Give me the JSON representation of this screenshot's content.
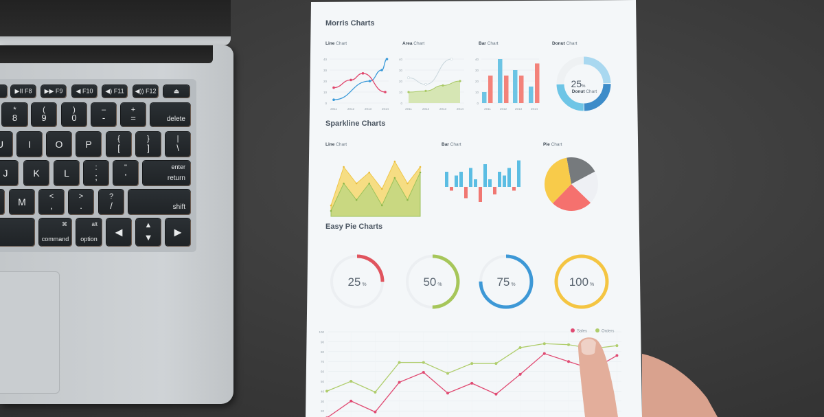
{
  "scene": {
    "background_color": "#3b3b3b",
    "laptop_color": "#cbcfd2",
    "paper_color": "#f4f7f9"
  },
  "keyboard": {
    "rows": [
      [
        {
          "one": ""
        },
        {
          "one": "▶II  F8"
        },
        {
          "one": "▶▶  F9"
        },
        {
          "one": "◀  F10"
        },
        {
          "one": "◀)  F11"
        },
        {
          "one": "◀))  F12"
        },
        {
          "one": "⏏"
        }
      ],
      [
        {
          "t": "*",
          "b": "8"
        },
        {
          "t": "(",
          "b": "9"
        },
        {
          "t": ")",
          "b": "0"
        },
        {
          "t": "–",
          "b": "-"
        },
        {
          "t": "+",
          "b": "="
        },
        {
          "b": "delete"
        }
      ],
      [
        {
          "one": "U"
        },
        {
          "one": "I"
        },
        {
          "one": "O"
        },
        {
          "one": "P"
        },
        {
          "t": "{",
          "b": "["
        },
        {
          "t": "}",
          "b": "]"
        },
        {
          "t": "|",
          "b": "\\"
        }
      ],
      [
        {
          "one": "J"
        },
        {
          "one": "K"
        },
        {
          "one": "L"
        },
        {
          "t": ":",
          "b": ";"
        },
        {
          "t": "\"",
          "b": "'"
        },
        {
          "t": "enter",
          "b": "return"
        }
      ],
      [
        {
          "one": ""
        },
        {
          "one": "M"
        },
        {
          "t": "<",
          "b": ","
        },
        {
          "t": ">",
          "b": "."
        },
        {
          "t": "?",
          "b": "/"
        },
        {
          "b": "shift"
        }
      ],
      [
        {
          "one": ""
        },
        {
          "t": "⌘",
          "b": "command"
        },
        {
          "t": "alt",
          "b": "option"
        },
        {
          "one": "◀"
        },
        {
          "t": "▲",
          "b": "▼"
        },
        {
          "one": "▶"
        }
      ]
    ]
  },
  "paper": {
    "morris": {
      "title": "Morris Charts",
      "line": {
        "bold": "Line",
        "rest": " Chart"
      },
      "area": {
        "bold": "Area",
        "rest": " Chart"
      },
      "bar": {
        "bold": "Bar",
        "rest": " Chart"
      },
      "donut": {
        "bold": "Donut",
        "rest": " Chart",
        "value": "25",
        "unit": "%",
        "center_bold": "Donut",
        "center_rest": " Chart"
      },
      "y_ticks": [
        "0",
        "10",
        "20",
        "30",
        "40"
      ],
      "x_ticks": [
        "2011",
        "2012",
        "2013",
        "2014"
      ]
    },
    "sparkline": {
      "title": "Sparkline Charts",
      "line": {
        "bold": "Line",
        "rest": " Chart"
      },
      "bar": {
        "bold": "Bar",
        "rest": " Chart"
      },
      "pie": {
        "bold": "Pie",
        "rest": " Chart"
      }
    },
    "easy_pie": {
      "title": "Easy Pie Charts",
      "items": [
        {
          "value": "25",
          "unit": "%",
          "percent": 25,
          "color": "#e0545e"
        },
        {
          "value": "50",
          "unit": "%",
          "percent": 50,
          "color": "#a6c65a"
        },
        {
          "value": "75",
          "unit": "%",
          "percent": 75,
          "color": "#3d98d6"
        },
        {
          "value": "100",
          "unit": "%",
          "percent": 100,
          "color": "#f4c542"
        }
      ]
    },
    "legend": {
      "sales": "Sales",
      "orders": "Orders"
    },
    "y_ticks": [
      "100",
      "90",
      "80",
      "70",
      "60",
      "50",
      "40",
      "30",
      "20"
    ]
  },
  "chart_data": [
    {
      "type": "line",
      "title": "Line Chart",
      "x": [
        "2011",
        "2012",
        "2013",
        "2014"
      ],
      "ylim": [
        0,
        40
      ],
      "series": [
        {
          "color": "#3a9ad9",
          "points": [
            [
              2011,
              3
            ],
            [
              2013.1,
              20
            ],
            [
              2013.8,
              30
            ],
            [
              2014.1,
              40
            ]
          ]
        },
        {
          "color": "#e0456b",
          "points": [
            [
              2011,
              14
            ],
            [
              2012,
              21
            ],
            [
              2012.7,
              27
            ],
            [
              2014,
              10
            ]
          ]
        }
      ]
    },
    {
      "type": "area",
      "title": "Area Chart",
      "x": [
        "2011",
        "2012",
        "2013",
        "2014"
      ],
      "ylim": [
        0,
        40
      ],
      "series": [
        {
          "color": "#a9c966",
          "points": [
            [
              2011,
              10
            ],
            [
              2012,
              11
            ],
            [
              2013,
              16
            ],
            [
              2014,
              20
            ]
          ]
        },
        {
          "color": "#c9d6dc",
          "points": [
            [
              2011,
              23
            ],
            [
              2012,
              17
            ],
            [
              2013.5,
              40
            ]
          ]
        }
      ]
    },
    {
      "type": "bar",
      "title": "Bar Chart",
      "categories": [
        "2011",
        "2012",
        "2013",
        "2014"
      ],
      "ylim": [
        0,
        40
      ],
      "series": [
        {
          "color": "#6cc4e4",
          "values": [
            10,
            40,
            30,
            15
          ]
        },
        {
          "color": "#f3827a",
          "values": [
            25,
            25,
            25,
            36
          ]
        }
      ]
    },
    {
      "type": "pie",
      "title": "Donut Chart",
      "values": [
        25,
        25,
        25,
        25
      ],
      "colors": [
        "#a9d8f0",
        "#3d8cc9",
        "#6ec5e6",
        "#eef1f3"
      ]
    },
    {
      "type": "area",
      "title": "Line Chart (sparkline)",
      "series": [
        {
          "color": "#f6d86e",
          "values": [
            2,
            9,
            6,
            8,
            5,
            10,
            6,
            9
          ]
        },
        {
          "color": "#b9d680",
          "values": [
            1,
            6,
            3,
            6,
            2,
            7,
            3,
            8
          ]
        }
      ]
    },
    {
      "type": "bar",
      "title": "Bar Chart (sparkline)",
      "values": [
        4,
        -1,
        3,
        4,
        -3,
        5,
        2,
        -4,
        6,
        2,
        -2,
        4,
        3,
        5,
        -1,
        7
      ],
      "colors": {
        "positive": "#5bbde3",
        "negative": "#f07772"
      }
    },
    {
      "type": "pie",
      "title": "Pie Chart (sparkline)",
      "values": [
        20,
        20,
        25,
        35
      ],
      "colors": [
        "#767a7d",
        "#eef0f4",
        "#f5716e",
        "#f8cb4a"
      ]
    },
    {
      "type": "line",
      "title": "",
      "ylim": [
        10,
        100
      ],
      "series": [
        {
          "name": "Sales",
          "color": "#e04a72",
          "values": [
            13,
            30,
            19,
            49,
            59,
            38,
            48,
            37,
            57,
            78,
            70,
            62,
            76
          ]
        },
        {
          "name": "Orders",
          "color": "#afcd6b",
          "values": [
            40,
            50,
            39,
            69,
            69,
            58,
            68,
            68,
            84,
            88,
            87,
            83,
            86
          ]
        }
      ]
    }
  ]
}
